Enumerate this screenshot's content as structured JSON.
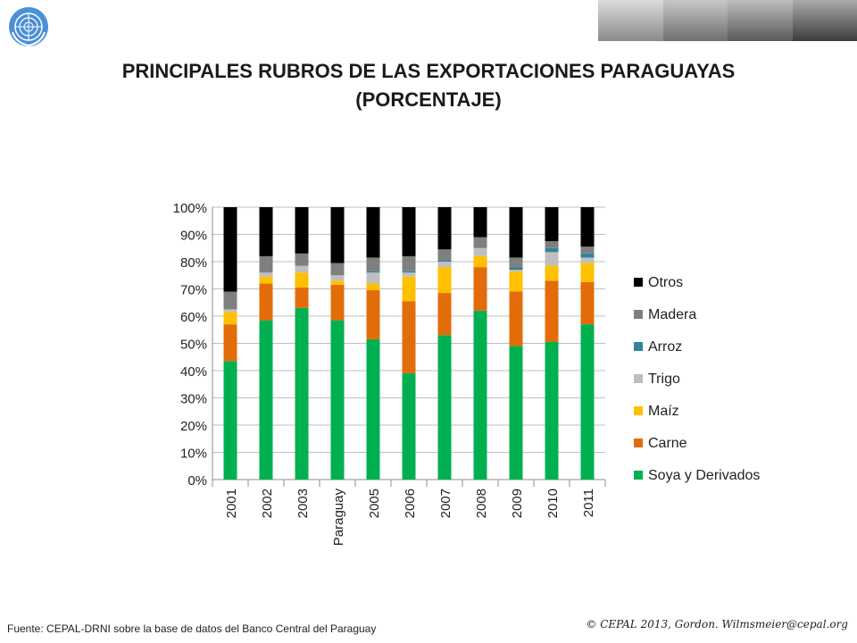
{
  "title_line1": "PRINCIPALES RUBROS DE LAS EXPORTACIONES PARAGUAYAS",
  "title_line2": "(PORCENTAJE)",
  "source": "Fuente: CEPAL-DRNI sobre la base de datos del Banco Central del Paraguay",
  "credit": "© CEPAL 2013, Gordon. Wilmsmeier@cepal.org",
  "colors": {
    "Soya y Derivados": "#00b050",
    "Carne": "#e36c0a",
    "Maíz": "#ffc000",
    "Trigo": "#bfbfbf",
    "Arroz": "#31849b",
    "Madera": "#7f7f7f",
    "Otros": "#000000"
  },
  "chart_data": {
    "type": "bar",
    "stacked": true,
    "categories": [
      "2001",
      "2002",
      "2003",
      "Paraguay",
      "2005",
      "2006",
      "2007",
      "2008",
      "2009",
      "2010",
      "2011"
    ],
    "y_ticks": [
      "0%",
      "10%",
      "20%",
      "30%",
      "40%",
      "50%",
      "60%",
      "70%",
      "80%",
      "90%",
      "100%"
    ],
    "ylim": [
      0,
      100
    ],
    "legend_position": "right",
    "series": [
      {
        "name": "Soya y Derivados",
        "values": [
          43.5,
          58.5,
          63,
          58.5,
          51.5,
          39,
          53,
          62,
          49,
          50.5,
          57
        ]
      },
      {
        "name": "Carne",
        "values": [
          13.5,
          13.5,
          7.5,
          13,
          18,
          26.5,
          15.5,
          16,
          20,
          22.5,
          15.5
        ]
      },
      {
        "name": "Maíz",
        "values": [
          4.5,
          2.5,
          5.5,
          1.5,
          2.5,
          9,
          9.5,
          4,
          7.5,
          5.5,
          7
        ]
      },
      {
        "name": "Trigo",
        "values": [
          1,
          1.5,
          2.5,
          2,
          4,
          1.5,
          2,
          3,
          0.5,
          5,
          2
        ]
      },
      {
        "name": "Arroz",
        "values": [
          0,
          0,
          0,
          0,
          0.5,
          0.5,
          0.5,
          0,
          1,
          1.5,
          1.5
        ]
      },
      {
        "name": "Madera",
        "values": [
          6.5,
          6,
          4.5,
          4.5,
          5,
          5.5,
          4,
          4,
          3.5,
          2.5,
          2.5
        ]
      },
      {
        "name": "Otros",
        "values": [
          31,
          18,
          17,
          20.5,
          18.5,
          18,
          15.5,
          11,
          18.5,
          12.5,
          14.5
        ]
      }
    ]
  }
}
